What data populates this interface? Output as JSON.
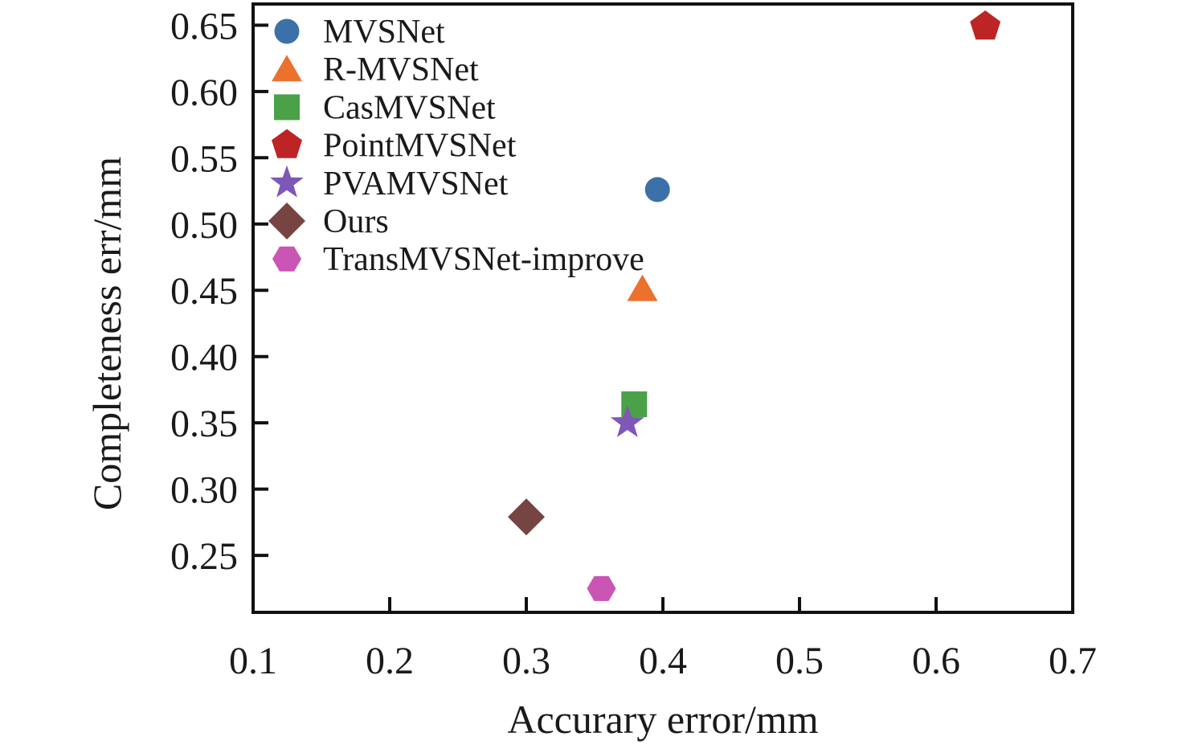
{
  "chart_data": {
    "type": "scatter",
    "title": "",
    "xlabel": "Accurary error/mm",
    "ylabel": "Completeness err/mm",
    "xlim": [
      0.1,
      0.7
    ],
    "ylim": [
      0.207,
      0.666
    ],
    "grid": false,
    "legend_position": "upper-left",
    "frame_color": "#111111",
    "text_color": "#1a1a1a",
    "background_color": "#ffffff",
    "xticks": {
      "values": [
        0.1,
        0.2,
        0.3,
        0.4,
        0.5,
        0.6,
        0.7
      ],
      "labels": [
        "0.1",
        "0.2",
        "0.3",
        "0.4",
        "0.5",
        "0.6",
        "0.7"
      ]
    },
    "yticks": {
      "values": [
        0.25,
        0.3,
        0.35,
        0.4,
        0.45,
        0.5,
        0.55,
        0.6,
        0.65
      ],
      "labels": [
        "0.25",
        "0.30",
        "0.35",
        "0.40",
        "0.45",
        "0.50",
        "0.55",
        "0.60",
        "0.65"
      ]
    },
    "series": [
      {
        "name": "MVSNet",
        "marker": "circle",
        "color": "#3c70a8",
        "points": [
          [
            0.396,
            0.526
          ]
        ]
      },
      {
        "name": "R-MVSNet",
        "marker": "triangle",
        "color": "#ec712c",
        "points": [
          [
            0.385,
            0.451
          ]
        ]
      },
      {
        "name": "CasMVSNet",
        "marker": "square",
        "color": "#4aa148",
        "points": [
          [
            0.379,
            0.364
          ]
        ]
      },
      {
        "name": "PointMVSNet",
        "marker": "pentagon",
        "color": "#bd2426",
        "points": [
          [
            0.636,
            0.649
          ]
        ]
      },
      {
        "name": "PVAMVSNet",
        "marker": "star",
        "color": "#7f57b7",
        "points": [
          [
            0.374,
            0.35
          ]
        ]
      },
      {
        "name": "Ours",
        "marker": "diamond",
        "color": "#764541",
        "points": [
          [
            0.3,
            0.279
          ]
        ]
      },
      {
        "name": "TransMVSNet-improve",
        "marker": "hexagon",
        "color": "#ca55b5",
        "points": [
          [
            0.355,
            0.225
          ]
        ]
      }
    ]
  }
}
